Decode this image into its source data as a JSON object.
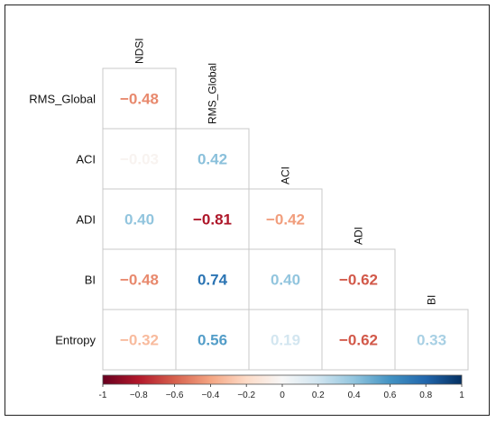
{
  "chart_data": {
    "type": "heatmap",
    "subtype": "lower-triangular correlation matrix",
    "rows": [
      "RMS_Global",
      "ACI",
      "ADI",
      "BI",
      "Entropy"
    ],
    "columns": [
      "NDSI",
      "RMS_Global",
      "ACI",
      "ADI",
      "BI"
    ],
    "cells": [
      {
        "row": "RMS_Global",
        "col": "NDSI",
        "value": -0.48,
        "label": "−0.48"
      },
      {
        "row": "ACI",
        "col": "NDSI",
        "value": -0.03,
        "label": "−0.03"
      },
      {
        "row": "ACI",
        "col": "RMS_Global",
        "value": 0.42,
        "label": "0.42"
      },
      {
        "row": "ADI",
        "col": "NDSI",
        "value": 0.4,
        "label": "0.40"
      },
      {
        "row": "ADI",
        "col": "RMS_Global",
        "value": -0.81,
        "label": "−0.81"
      },
      {
        "row": "ADI",
        "col": "ACI",
        "value": -0.42,
        "label": "−0.42"
      },
      {
        "row": "BI",
        "col": "NDSI",
        "value": -0.48,
        "label": "−0.48"
      },
      {
        "row": "BI",
        "col": "RMS_Global",
        "value": 0.74,
        "label": "0.74"
      },
      {
        "row": "BI",
        "col": "ACI",
        "value": 0.4,
        "label": "0.40"
      },
      {
        "row": "BI",
        "col": "ADI",
        "value": -0.62,
        "label": "−0.62"
      },
      {
        "row": "Entropy",
        "col": "NDSI",
        "value": -0.32,
        "label": "−0.32"
      },
      {
        "row": "Entropy",
        "col": "RMS_Global",
        "value": 0.56,
        "label": "0.56"
      },
      {
        "row": "Entropy",
        "col": "ACI",
        "value": 0.19,
        "label": "0.19"
      },
      {
        "row": "Entropy",
        "col": "ADI",
        "value": -0.62,
        "label": "−0.62"
      },
      {
        "row": "Entropy",
        "col": "BI",
        "value": 0.33,
        "label": "0.33"
      }
    ],
    "colorbar": {
      "range": [
        -1,
        1
      ],
      "ticks": [
        -1,
        -0.8,
        -0.6,
        -0.4,
        -0.2,
        0,
        0.2,
        0.4,
        0.6,
        0.8,
        1
      ],
      "tick_labels": [
        "-1",
        "−0.8",
        "−0.6",
        "−0.4",
        "−0.2",
        "0",
        "0.2",
        "0.4",
        "0.6",
        "0.8",
        "1"
      ],
      "colors": [
        "#67001f",
        "#b2182b",
        "#d6604d",
        "#f4a582",
        "#fddbc7",
        "#f7f7f7",
        "#d1e5f0",
        "#92c5de",
        "#4393c3",
        "#2166ac",
        "#053061"
      ],
      "placement": "bottom"
    },
    "grid": true
  }
}
